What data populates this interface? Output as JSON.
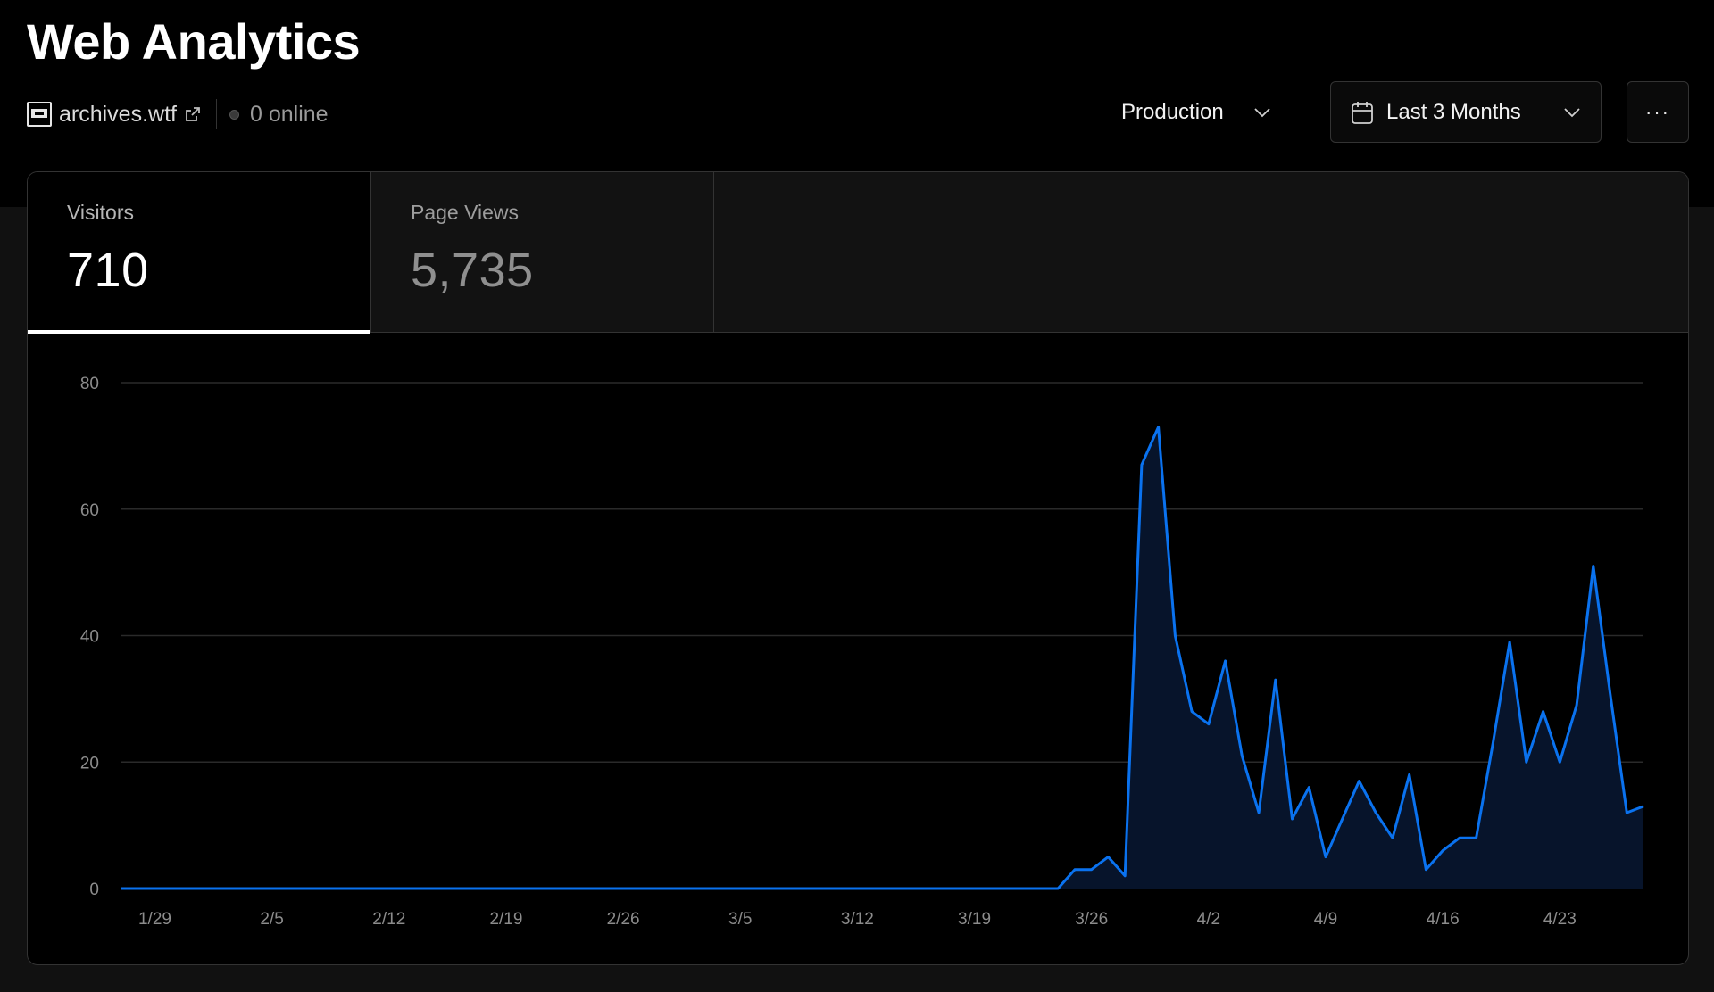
{
  "header": {
    "title": "Web Analytics",
    "site_name": "archives.wtf",
    "online_text": "0 online",
    "environment": "Production",
    "date_range": "Last 3 Months",
    "more_label": "···"
  },
  "tabs": [
    {
      "label": "Visitors",
      "value": "710",
      "active": true
    },
    {
      "label": "Page Views",
      "value": "5,735",
      "active": false
    }
  ],
  "colors": {
    "accent": "#0a72ef",
    "area_fill": "#07142b",
    "grid": "#2a2a2a",
    "background": "#000000"
  },
  "chart_data": {
    "type": "area",
    "ylim": [
      0,
      80
    ],
    "y_ticks": [
      0,
      20,
      40,
      60,
      80
    ],
    "x_tick_labels": [
      "1/29",
      "2/5",
      "2/12",
      "2/19",
      "2/26",
      "3/5",
      "3/12",
      "3/19",
      "3/26",
      "4/2",
      "4/9",
      "4/16",
      "4/23"
    ],
    "x_tick_indices": [
      2,
      9,
      16,
      23,
      30,
      37,
      44,
      51,
      58,
      65,
      72,
      79,
      86
    ],
    "series": [
      {
        "values": [
          0,
          0,
          0,
          0,
          0,
          0,
          0,
          0,
          0,
          0,
          0,
          0,
          0,
          0,
          0,
          0,
          0,
          0,
          0,
          0,
          0,
          0,
          0,
          0,
          0,
          0,
          0,
          0,
          0,
          0,
          0,
          0,
          0,
          0,
          0,
          0,
          0,
          0,
          0,
          0,
          0,
          0,
          0,
          0,
          0,
          0,
          0,
          0,
          0,
          0,
          0,
          0,
          0,
          0,
          0,
          0,
          0,
          3,
          3,
          5,
          2,
          67,
          73,
          40,
          28,
          26,
          36,
          21,
          12,
          33,
          11,
          16,
          5,
          11,
          17,
          12,
          8,
          18,
          3,
          6,
          8,
          8,
          23,
          39,
          20,
          28,
          20,
          29,
          51,
          31,
          12,
          13
        ]
      }
    ]
  }
}
